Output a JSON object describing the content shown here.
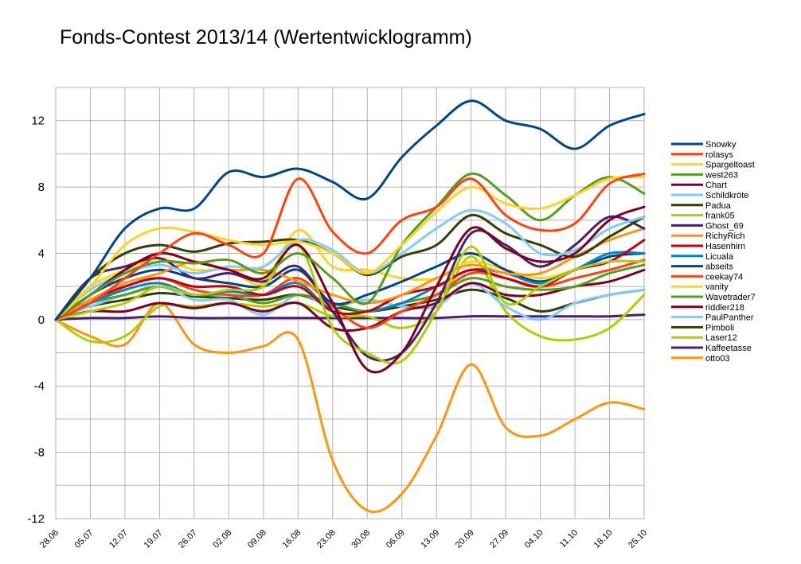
{
  "chart_data": {
    "type": "line",
    "title": "Fonds-Contest 2013/14 (Wertentwicklogramm)",
    "xlabel": "",
    "ylabel": "",
    "ylim": [
      -12,
      14
    ],
    "yticks": [
      -12,
      -8,
      -4,
      0,
      4,
      8,
      12
    ],
    "grid": true,
    "legend_position": "right",
    "categories": [
      "28.06",
      "05.07",
      "12.07",
      "19.07",
      "26.07",
      "02.08",
      "09.08",
      "16.08",
      "23.08",
      "30.08",
      "06.09",
      "13.09",
      "20.09",
      "27.09",
      "04.10",
      "11.10",
      "18.10",
      "25.10"
    ],
    "series": [
      {
        "name": "Snowky",
        "color": "#004586",
        "values": [
          0,
          2.5,
          5.5,
          6.7,
          6.7,
          8.9,
          8.6,
          9.1,
          8.3,
          7.3,
          9.8,
          11.7,
          13.2,
          12.0,
          11.5,
          10.3,
          11.7,
          12.4
        ]
      },
      {
        "name": "rolasys",
        "color": "#ff420e",
        "values": [
          0,
          1.0,
          2.5,
          4.0,
          5.2,
          4.5,
          4.0,
          8.5,
          5.3,
          4.0,
          6.0,
          6.8,
          8.5,
          6.3,
          5.4,
          5.8,
          8.2,
          8.8
        ]
      },
      {
        "name": "Spargeltoast",
        "color": "#ffd320",
        "values": [
          0,
          2.0,
          4.5,
          5.5,
          5.3,
          4.8,
          4.5,
          4.7,
          4.0,
          2.8,
          4.5,
          6.5,
          8.0,
          7.0,
          6.7,
          7.5,
          8.5,
          8.6
        ]
      },
      {
        "name": "west263",
        "color": "#579d1c",
        "values": [
          0,
          1.5,
          2.8,
          3.5,
          3.4,
          3.6,
          2.8,
          4.0,
          2.5,
          1.0,
          4.5,
          6.8,
          8.8,
          7.5,
          6.0,
          7.5,
          8.6,
          7.6
        ]
      },
      {
        "name": "Chart",
        "color": "#7e0021",
        "values": [
          0,
          1.5,
          3.0,
          4.0,
          3.5,
          3.0,
          2.5,
          4.5,
          1.0,
          -3.0,
          -2.0,
          2.0,
          5.5,
          4.3,
          3.5,
          4.0,
          6.0,
          6.8
        ]
      },
      {
        "name": "Schildkröte",
        "color": "#83caff",
        "values": [
          0,
          1.8,
          2.8,
          3.3,
          2.8,
          3.2,
          3.2,
          4.8,
          4.2,
          2.8,
          4.0,
          5.5,
          6.6,
          5.8,
          4.0,
          4.2,
          5.5,
          6.2
        ]
      },
      {
        "name": "Padua",
        "color": "#314004",
        "values": [
          0,
          2.5,
          4.0,
          4.5,
          4.1,
          4.6,
          4.7,
          4.8,
          4.0,
          2.7,
          3.8,
          4.5,
          6.3,
          5.2,
          4.5,
          3.8,
          5.0,
          6.2
        ]
      },
      {
        "name": "frank05",
        "color": "#aecf00",
        "values": [
          0,
          0.5,
          1.0,
          2.0,
          1.5,
          1.8,
          2.0,
          4.5,
          -0.5,
          -2.0,
          -2.5,
          0.5,
          4.4,
          1.0,
          2.0,
          3.0,
          3.5,
          3.5
        ]
      },
      {
        "name": "Ghost_69",
        "color": "#4b1f6f",
        "values": [
          0,
          2.5,
          3.2,
          3.7,
          2.5,
          2.8,
          2.3,
          3.2,
          0.5,
          -2.2,
          -2.0,
          1.0,
          5.2,
          4.5,
          3.2,
          4.5,
          6.2,
          5.5
        ]
      },
      {
        "name": "RichyRich",
        "color": "#ff950e",
        "values": [
          0,
          1.2,
          2.2,
          2.8,
          3.5,
          3.0,
          3.0,
          2.3,
          1.5,
          1.0,
          1.5,
          2.5,
          3.3,
          2.8,
          2.8,
          3.8,
          4.8,
          5.5
        ]
      },
      {
        "name": "Hasenhirn",
        "color": "#c5000b",
        "values": [
          0,
          1.2,
          2.0,
          2.5,
          2.0,
          2.0,
          1.5,
          2.0,
          0.5,
          0.5,
          1.5,
          2.0,
          3.0,
          2.5,
          2.0,
          3.0,
          3.5,
          4.8
        ]
      },
      {
        "name": "Licuala",
        "color": "#0084d1",
        "values": [
          0,
          1.0,
          1.8,
          2.2,
          1.5,
          1.7,
          1.5,
          2.2,
          0.5,
          0.5,
          1.0,
          2.0,
          3.0,
          2.8,
          2.2,
          3.0,
          4.0,
          4.0
        ]
      },
      {
        "name": "abseits",
        "color": "#004586",
        "values": [
          0,
          1.5,
          2.5,
          3.0,
          2.5,
          2.2,
          2.0,
          3.0,
          1.0,
          1.5,
          2.3,
          3.2,
          4.0,
          3.0,
          2.3,
          3.0,
          3.8,
          4.0
        ]
      },
      {
        "name": "ceekay74",
        "color": "#ff420e",
        "values": [
          0,
          1.0,
          2.0,
          2.5,
          1.8,
          1.5,
          1.5,
          2.5,
          0.8,
          -0.5,
          0.5,
          1.5,
          2.8,
          2.5,
          2.0,
          2.5,
          3.0,
          3.6
        ]
      },
      {
        "name": "vanity",
        "color": "#ffd320",
        "values": [
          0,
          2.0,
          3.0,
          3.7,
          3.0,
          3.0,
          2.2,
          5.4,
          3.2,
          3.0,
          2.5,
          2.5,
          3.5,
          3.0,
          2.5,
          3.0,
          3.5,
          3.5
        ]
      },
      {
        "name": "Wavetrader7",
        "color": "#579d1c",
        "values": [
          0,
          1.0,
          1.5,
          2.0,
          1.5,
          1.5,
          1.0,
          1.5,
          1.0,
          0.5,
          1.0,
          1.5,
          2.5,
          2.0,
          1.8,
          2.0,
          2.8,
          3.3
        ]
      },
      {
        "name": "riddler218",
        "color": "#7e0021",
        "values": [
          0,
          0.5,
          0.5,
          1.0,
          0.7,
          1.0,
          0.5,
          1.0,
          -0.5,
          -0.5,
          0.5,
          1.0,
          2.2,
          1.5,
          1.5,
          2.0,
          2.3,
          3.0
        ]
      },
      {
        "name": "PaulPanther",
        "color": "#83caff",
        "values": [
          0,
          0.8,
          1.5,
          2.0,
          1.2,
          1.2,
          0.3,
          1.5,
          0.8,
          1.2,
          0.8,
          0.8,
          2.2,
          0.8,
          0.0,
          1.0,
          1.5,
          1.8
        ]
      },
      {
        "name": "Pimboli",
        "color": "#314004",
        "values": [
          0,
          0.8,
          1.2,
          1.6,
          1.4,
          1.3,
          1.2,
          1.5,
          0.8,
          0.5,
          0.8,
          1.2,
          1.8,
          1.3,
          0.5,
          1.0,
          1.5,
          1.8
        ]
      },
      {
        "name": "Laser12",
        "color": "#aecf00",
        "values": [
          0,
          -1.3,
          -1.0,
          0.8,
          0.8,
          1.0,
          0.8,
          1.0,
          0.2,
          0.2,
          -0.5,
          0.5,
          3.8,
          0.5,
          -1.0,
          -1.2,
          -0.5,
          1.5
        ]
      },
      {
        "name": "Kaffeetasse",
        "color": "#4b1f6f",
        "values": [
          0,
          0.1,
          0.1,
          0.2,
          0.1,
          0.1,
          0.1,
          0.1,
          0.1,
          0.1,
          0.1,
          0.1,
          0.2,
          0.2,
          0.2,
          0.2,
          0.2,
          0.3
        ]
      },
      {
        "name": "otto03",
        "color": "#ff950e",
        "values": [
          0,
          -1.0,
          -1.5,
          1.0,
          -1.5,
          -2.0,
          -1.6,
          -1.2,
          -8.5,
          -11.5,
          -10.5,
          -7.0,
          -2.7,
          -6.5,
          -7.0,
          -6.0,
          -5.0,
          -5.4
        ]
      }
    ]
  }
}
